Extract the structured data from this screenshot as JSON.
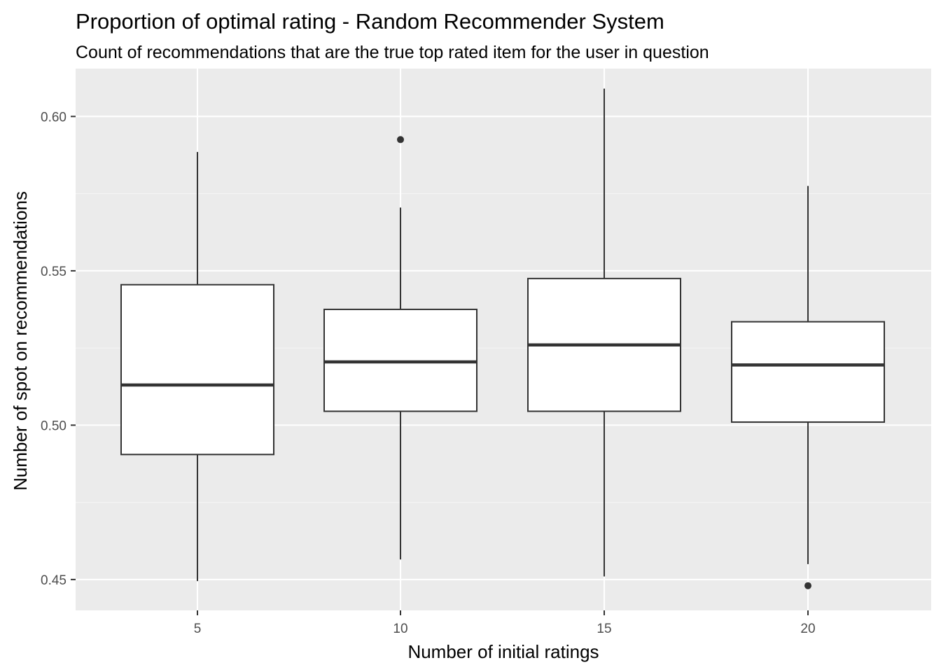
{
  "chart_data": {
    "type": "boxplot",
    "title": "Proportion of optimal rating - Random Recommender System",
    "subtitle": "Count of recommendations that are the true top rated item for the user in question",
    "xlabel": "Number of initial ratings",
    "ylabel": "Number of spot on recommendations",
    "categories": [
      "5",
      "10",
      "15",
      "20"
    ],
    "ylim": [
      0.44,
      0.6155
    ],
    "y_ticks": [
      0.45,
      0.5,
      0.55,
      0.6
    ],
    "y_tick_labels": [
      "0.45",
      "0.50",
      "0.55",
      "0.60"
    ],
    "grid": true,
    "boxes": [
      {
        "category": "5",
        "whisker_low": 0.4495,
        "q1": 0.4905,
        "median": 0.513,
        "q3": 0.5455,
        "whisker_high": 0.5885,
        "outliers": []
      },
      {
        "category": "10",
        "whisker_low": 0.4565,
        "q1": 0.5045,
        "median": 0.5205,
        "q3": 0.5375,
        "whisker_high": 0.5705,
        "outliers": [
          0.5925
        ]
      },
      {
        "category": "15",
        "whisker_low": 0.451,
        "q1": 0.5045,
        "median": 0.526,
        "q3": 0.5475,
        "whisker_high": 0.609,
        "outliers": []
      },
      {
        "category": "20",
        "whisker_low": 0.455,
        "q1": 0.501,
        "median": 0.5195,
        "q3": 0.5335,
        "whisker_high": 0.5775,
        "outliers": [
          0.448
        ]
      }
    ],
    "colors": {
      "panel_background": "#ebebeb",
      "grid_major": "#ffffff",
      "grid_minor": "#f5f5f5",
      "box_fill": "#ffffff",
      "box_stroke": "#333333",
      "tick_text": "#4d4d4d"
    }
  }
}
